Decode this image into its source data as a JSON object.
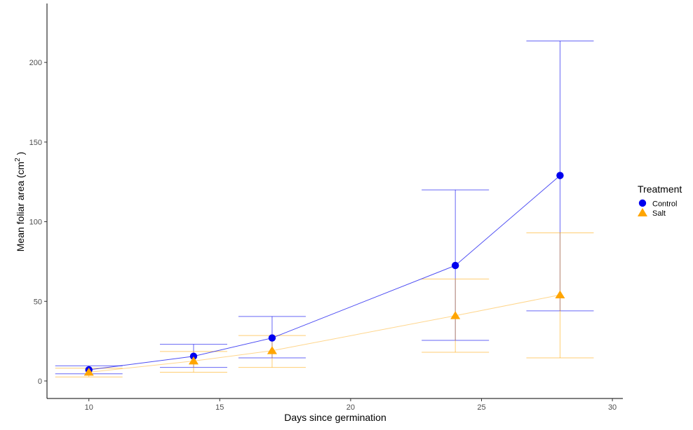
{
  "chart_data": {
    "type": "line",
    "xlabel": "Days since germination",
    "ylabel_main": "Mean foliar area (cm",
    "ylabel_sup": "2",
    "ylabel_end": " )",
    "xlim": [
      8.4,
      30.4
    ],
    "ylim": [
      -11,
      237
    ],
    "x_ticks": [
      10,
      15,
      20,
      25,
      30
    ],
    "y_ticks": [
      0,
      50,
      100,
      150,
      200
    ],
    "grid": false,
    "legend": {
      "title": "Treatment",
      "placement": "right"
    },
    "x": [
      10,
      14,
      17,
      24,
      28
    ],
    "series": [
      {
        "name": "Control",
        "color": "#0000ee",
        "marker": "circle",
        "values": [
          7,
          15.5,
          27,
          72.5,
          129
        ],
        "err_low": [
          4.5,
          8.5,
          14.5,
          25.5,
          44
        ],
        "err_high": [
          9.5,
          23,
          40.5,
          120,
          213.5
        ]
      },
      {
        "name": "Salt",
        "color": "#ffa500",
        "marker": "triangle",
        "values": [
          5.5,
          12.5,
          19,
          41,
          54
        ],
        "err_low": [
          2.5,
          5.5,
          8.5,
          18,
          14.5
        ],
        "err_high": [
          8,
          18.5,
          28.5,
          64,
          93
        ]
      }
    ]
  }
}
